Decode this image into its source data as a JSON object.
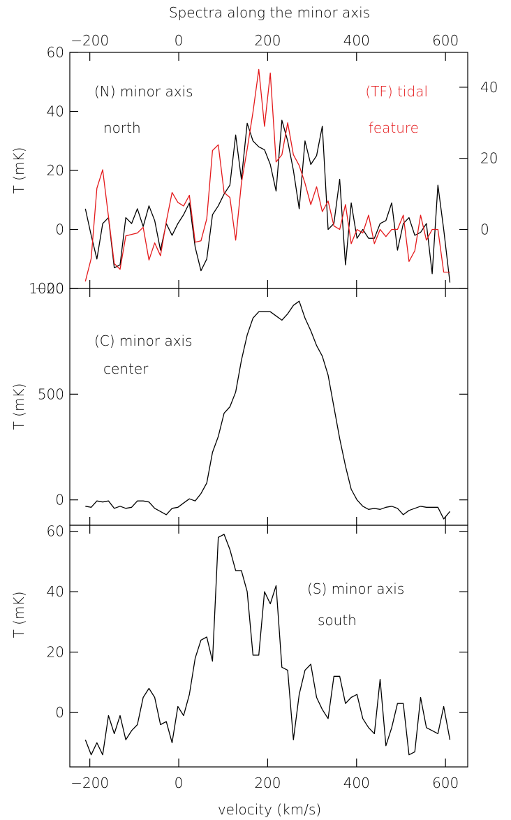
{
  "figure": {
    "title": "Spectra along the minor axis",
    "xlabel": "velocity (km/s)",
    "colors": {
      "axes": "#000000",
      "series_main": "#000000",
      "series_tf": "#e41a1c"
    }
  },
  "chart_data": [
    {
      "type": "line",
      "panel": "north",
      "ylabel": "T (mK)",
      "xlim": [
        -245,
        650
      ],
      "ylim": [
        -20,
        60
      ],
      "xticks": [
        -200,
        0,
        200,
        400,
        600
      ],
      "xtick_labels": [
        "−200",
        "0",
        "200",
        "400",
        "600"
      ],
      "yticks": [
        -20,
        0,
        20,
        40,
        60
      ],
      "ytick_labels": [
        "−20",
        "0",
        "20",
        "40",
        "60"
      ],
      "right_axis": {
        "ylim": [
          -16.6,
          49.8
        ],
        "ticks": [
          0,
          20,
          40
        ],
        "tick_labels": [
          "0",
          "20",
          "40"
        ]
      },
      "annotations": [
        {
          "text": "(N) minor axis",
          "color": "#000000"
        },
        {
          "text": "north",
          "color": "#000000"
        },
        {
          "text": "(TF) tidal",
          "color": "#e41a1c"
        },
        {
          "text": "feature",
          "color": "#e41a1c"
        }
      ],
      "series": [
        {
          "color": "#000000",
          "axis": "left",
          "x": [
            -210,
            -197,
            -184,
            -171,
            -158,
            -145,
            -132,
            -119,
            -106,
            -93,
            -80,
            -67,
            -54,
            -41,
            -28,
            -15,
            -2,
            11,
            24,
            37,
            50,
            63,
            76,
            89,
            102,
            115,
            128,
            141,
            154,
            167,
            180,
            193,
            206,
            219,
            232,
            245,
            258,
            271,
            284,
            297,
            310,
            323,
            336,
            349,
            362,
            375,
            388,
            401,
            414,
            427,
            440,
            453,
            466,
            479,
            492,
            505,
            518,
            531,
            544,
            557,
            570,
            583,
            596,
            610
          ],
          "y": [
            7,
            -2,
            -10,
            2,
            4,
            -13,
            -12,
            4,
            2,
            7,
            1,
            8,
            3,
            -7,
            2,
            -2,
            2,
            5,
            9,
            -6,
            -14,
            -10,
            5,
            8,
            12,
            15,
            32,
            17,
            36,
            30,
            28,
            27,
            22,
            13,
            37,
            30,
            20,
            7,
            30,
            22,
            25,
            35,
            0,
            2,
            17,
            -12,
            9,
            -3,
            0,
            -3,
            -3,
            2,
            3,
            9,
            -7,
            2,
            4,
            -2,
            -1,
            2,
            -15,
            15,
            0,
            -18
          ]
        },
        {
          "color": "#e41a1c",
          "axis": "right",
          "x": [
            -210,
            -197,
            -184,
            -171,
            -158,
            -145,
            -132,
            -119,
            -106,
            -93,
            -80,
            -67,
            -54,
            -41,
            -28,
            -15,
            -2,
            11,
            24,
            37,
            50,
            63,
            76,
            89,
            102,
            115,
            128,
            141,
            154,
            167,
            180,
            193,
            206,
            219,
            232,
            245,
            258,
            271,
            284,
            297,
            310,
            323,
            336,
            349,
            362,
            375,
            388,
            401,
            414,
            427,
            440,
            453,
            466,
            479,
            492,
            505,
            518,
            531,
            544,
            557,
            570,
            583,
            596,
            610
          ],
          "y": [
            -14.6,
            -8.2,
            11.6,
            16.8,
            3.6,
            -9.6,
            -11.2,
            -1.8,
            -1.4,
            -1.0,
            0.6,
            -8.6,
            -3.8,
            -7.4,
            2.2,
            10.4,
            7.6,
            6.6,
            9.6,
            -3.6,
            -3.2,
            3.0,
            22.2,
            23.8,
            10.4,
            9.0,
            -3.0,
            13.0,
            22.6,
            33.0,
            45.0,
            29.0,
            44.0,
            19.0,
            21.0,
            30.0,
            21.0,
            18.0,
            13.0,
            7.0,
            12.0,
            5.0,
            8.0,
            1.0,
            0.0,
            7.0,
            -4.0,
            0.0,
            -1.0,
            4.0,
            -4.0,
            0.0,
            -2.0,
            0.0,
            0.0,
            4.0,
            -9.0,
            -6.0,
            4.0,
            -3.0,
            0.0,
            0.0,
            -12.0,
            -12.0
          ]
        }
      ]
    },
    {
      "type": "line",
      "panel": "center",
      "ylabel": "T (mK)",
      "xlim": [
        -245,
        650
      ],
      "ylim": [
        -120,
        1000
      ],
      "xticks": [
        -200,
        0,
        200,
        400,
        600
      ],
      "yticks": [
        0,
        500,
        1000
      ],
      "ytick_labels": [
        "0",
        "500",
        "1000"
      ],
      "annotations": [
        {
          "text": "(C) minor axis",
          "color": "#000000"
        },
        {
          "text": "center",
          "color": "#000000"
        }
      ],
      "series": [
        {
          "color": "#000000",
          "x": [
            -210,
            -197,
            -184,
            -171,
            -158,
            -145,
            -132,
            -119,
            -106,
            -93,
            -80,
            -67,
            -54,
            -41,
            -28,
            -15,
            -2,
            11,
            24,
            37,
            50,
            63,
            76,
            89,
            102,
            115,
            128,
            141,
            154,
            167,
            180,
            193,
            206,
            219,
            232,
            245,
            258,
            271,
            284,
            297,
            310,
            323,
            336,
            349,
            362,
            375,
            388,
            401,
            414,
            427,
            440,
            453,
            466,
            479,
            492,
            505,
            518,
            531,
            544,
            557,
            570,
            583,
            596,
            610
          ],
          "y": [
            -30,
            -35,
            -5,
            -10,
            -5,
            -40,
            -30,
            -40,
            -35,
            -5,
            -5,
            -10,
            -40,
            -55,
            -70,
            -40,
            -35,
            -15,
            5,
            -5,
            30,
            80,
            225,
            300,
            410,
            440,
            510,
            660,
            780,
            860,
            890,
            890,
            890,
            870,
            850,
            880,
            920,
            940,
            860,
            800,
            730,
            680,
            590,
            440,
            290,
            160,
            50,
            0,
            -30,
            -45,
            -40,
            -45,
            -35,
            -30,
            -40,
            -70,
            -50,
            -40,
            -30,
            -35,
            -35,
            -35,
            -90,
            -55
          ]
        }
      ]
    },
    {
      "type": "line",
      "panel": "south",
      "ylabel": "T (mK)",
      "xlim": [
        -245,
        650
      ],
      "ylim": [
        -18,
        62
      ],
      "xticks": [
        -200,
        0,
        200,
        400,
        600
      ],
      "xtick_labels": [
        "−200",
        "0",
        "200",
        "400",
        "600"
      ],
      "yticks": [
        0,
        20,
        40,
        60
      ],
      "ytick_labels": [
        "0",
        "20",
        "40",
        "60"
      ],
      "annotations": [
        {
          "text": "(S) minor axis",
          "color": "#000000"
        },
        {
          "text": "south",
          "color": "#000000"
        }
      ],
      "series": [
        {
          "color": "#000000",
          "x": [
            -210,
            -197,
            -184,
            -171,
            -158,
            -145,
            -132,
            -119,
            -106,
            -93,
            -80,
            -67,
            -54,
            -41,
            -28,
            -15,
            -2,
            11,
            24,
            37,
            50,
            63,
            76,
            89,
            102,
            115,
            128,
            141,
            154,
            167,
            180,
            193,
            206,
            219,
            232,
            245,
            258,
            271,
            284,
            297,
            310,
            323,
            336,
            349,
            362,
            375,
            388,
            401,
            414,
            427,
            440,
            453,
            466,
            479,
            492,
            505,
            518,
            531,
            544,
            557,
            570,
            583,
            596,
            610
          ],
          "y": [
            -9,
            -14,
            -10,
            -14,
            -1,
            -7,
            -1,
            -9,
            -6,
            -4,
            5,
            8,
            5,
            -4,
            -3,
            -10,
            2,
            -1,
            6,
            18,
            24,
            25,
            17,
            58,
            59,
            54,
            47,
            47,
            40,
            19,
            19,
            40,
            36,
            42,
            15,
            14,
            -9,
            6,
            14,
            16,
            5,
            1,
            -2,
            12,
            12,
            3,
            5,
            6,
            -2,
            -5,
            -7,
            11,
            -11,
            -5,
            3,
            3,
            -14,
            -13,
            5,
            -5,
            -6,
            -7,
            2,
            -9
          ]
        }
      ]
    }
  ]
}
